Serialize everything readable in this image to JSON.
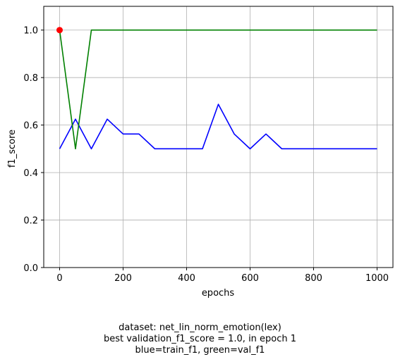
{
  "chart_data": {
    "type": "line",
    "xlabel": "epochs",
    "ylabel": "f1_score",
    "xlim": [
      -50,
      1050
    ],
    "ylim": [
      0.0,
      1.1
    ],
    "xticks": [
      0,
      200,
      400,
      600,
      800,
      1000
    ],
    "yticks": [
      0.0,
      0.2,
      0.4,
      0.6,
      0.8,
      1.0
    ],
    "xtick_labels": [
      "0",
      "200",
      "400",
      "600",
      "800",
      "1000"
    ],
    "ytick_labels": [
      "0.0",
      "0.2",
      "0.4",
      "0.6",
      "0.8",
      "1.0"
    ],
    "grid": true,
    "x": [
      0,
      50,
      100,
      150,
      200,
      250,
      300,
      350,
      400,
      450,
      500,
      550,
      600,
      650,
      700,
      750,
      800,
      850,
      900,
      950,
      1000
    ],
    "series": [
      {
        "color": "#0000ff",
        "values": [
          0.5,
          0.625,
          0.5,
          0.625,
          0.5625,
          0.5625,
          0.5,
          0.5,
          0.5,
          0.5,
          0.6875,
          0.5625,
          0.5,
          0.5625,
          0.5,
          0.5,
          0.5,
          0.5,
          0.5,
          0.5,
          0.5
        ]
      },
      {
        "color": "#008000",
        "values": [
          1.0,
          0.5,
          1.0,
          1.0,
          1.0,
          1.0,
          1.0,
          1.0,
          1.0,
          1.0,
          1.0,
          1.0,
          1.0,
          1.0,
          1.0,
          1.0,
          1.0,
          1.0,
          1.0,
          1.0,
          1.0
        ]
      }
    ],
    "marker": {
      "x": 0,
      "y": 1.0,
      "color": "#ff0000"
    }
  },
  "caption": {
    "line1": "dataset: net_lin_norm_emotion(lex)",
    "line2": "best validation_f1_score = 1.0, in epoch 1",
    "line3": "blue=train_f1, green=val_f1"
  }
}
